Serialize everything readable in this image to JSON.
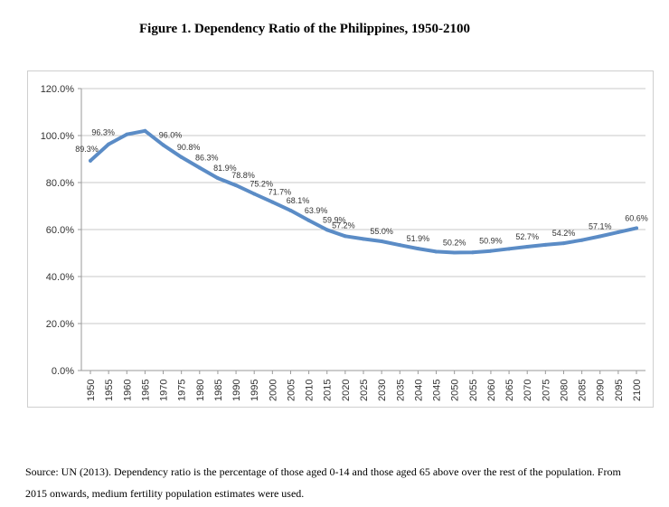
{
  "title": "Figure 1. Dependency Ratio of the Philippines, 1950-2100",
  "source_note": "Source: UN (2013). Dependency ratio is the percentage of those aged 0-14 and those aged 65 above over the rest of the population. From 2015 onwards, medium fertility population estimates were used.",
  "chart_data": {
    "type": "line",
    "title": "Figure 1. Dependency Ratio of the Philippines, 1950-2100",
    "xlabel": "",
    "ylabel": "",
    "ylim": [
      0,
      120
    ],
    "y_tick_labels": [
      "0.0%",
      "20.0%",
      "40.0%",
      "60.0%",
      "80.0%",
      "100.0%",
      "120.0%"
    ],
    "y_ticks": [
      0,
      20,
      40,
      60,
      80,
      100,
      120
    ],
    "grid": "horizontal",
    "legend": "none",
    "line_color": "#5b8cc6",
    "categories": [
      "1950",
      "1955",
      "1960",
      "1965",
      "1970",
      "1975",
      "1980",
      "1985",
      "1990",
      "1995",
      "2000",
      "2005",
      "2010",
      "2015",
      "2020",
      "2025",
      "2030",
      "2035",
      "2040",
      "2045",
      "2050",
      "2055",
      "2060",
      "2065",
      "2070",
      "2075",
      "2080",
      "2085",
      "2090",
      "2095",
      "2100"
    ],
    "values": [
      89.3,
      96.3,
      100.5,
      102.0,
      96.0,
      90.8,
      86.3,
      81.9,
      78.8,
      75.2,
      71.7,
      68.1,
      63.9,
      59.9,
      57.2,
      56.0,
      55.0,
      53.4,
      51.9,
      50.6,
      50.2,
      50.3,
      50.9,
      51.8,
      52.7,
      53.5,
      54.2,
      55.5,
      57.1,
      58.9,
      60.6
    ],
    "data_labels": [
      {
        "index": 0,
        "text": "89.3%"
      },
      {
        "index": 1,
        "text": "96.3%"
      },
      {
        "index": 4,
        "text": "96.0%"
      },
      {
        "index": 5,
        "text": "90.8%"
      },
      {
        "index": 6,
        "text": "86.3%"
      },
      {
        "index": 7,
        "text": "81.9%"
      },
      {
        "index": 8,
        "text": "78.8%"
      },
      {
        "index": 9,
        "text": "75.2%"
      },
      {
        "index": 10,
        "text": "71.7%"
      },
      {
        "index": 11,
        "text": "68.1%"
      },
      {
        "index": 12,
        "text": "63.9%"
      },
      {
        "index": 13,
        "text": "59.9%"
      },
      {
        "index": 14,
        "text": "57.2%"
      },
      {
        "index": 16,
        "text": "55.0%"
      },
      {
        "index": 18,
        "text": "51.9%"
      },
      {
        "index": 20,
        "text": "50.2%"
      },
      {
        "index": 22,
        "text": "50.9%"
      },
      {
        "index": 24,
        "text": "52.7%"
      },
      {
        "index": 26,
        "text": "54.2%"
      },
      {
        "index": 28,
        "text": "57.1%"
      },
      {
        "index": 30,
        "text": "60.6%"
      }
    ]
  }
}
